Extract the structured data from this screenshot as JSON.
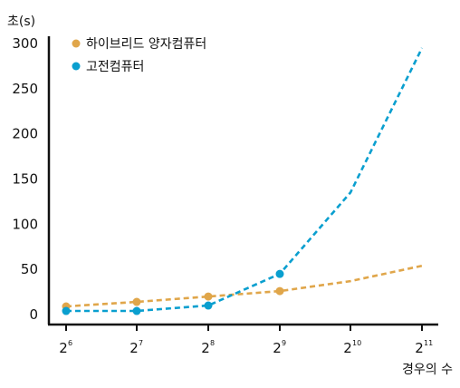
{
  "chart_data": {
    "type": "line",
    "ylabel": "초(s)",
    "xlabel": "경우의 수",
    "ylim": [
      0,
      300
    ],
    "yticks": [
      "0",
      "50",
      "100",
      "150",
      "200",
      "250",
      "300"
    ],
    "xticks": [
      {
        "base": "2",
        "exp": "6"
      },
      {
        "base": "2",
        "exp": "7"
      },
      {
        "base": "2",
        "exp": "8"
      },
      {
        "base": "2",
        "exp": "9"
      },
      {
        "base": "2",
        "exp": "10"
      },
      {
        "base": "2",
        "exp": "11"
      }
    ],
    "legend_position": "top-left",
    "series": [
      {
        "name": "하이브리드 양자컴퓨터",
        "color": "#e0a64a",
        "x": [
          64,
          128,
          256,
          512,
          1024,
          2048
        ],
        "values": [
          9,
          14,
          20,
          26,
          37,
          54
        ],
        "markers": [
          true,
          true,
          true,
          true,
          false,
          false
        ]
      },
      {
        "name": "고전컴퓨터",
        "color": "#0a9fcf",
        "x": [
          64,
          128,
          256,
          512,
          1024,
          2048
        ],
        "values": [
          4,
          4,
          10,
          45,
          135,
          295
        ],
        "markers": [
          true,
          true,
          true,
          true,
          false,
          false
        ]
      }
    ]
  }
}
